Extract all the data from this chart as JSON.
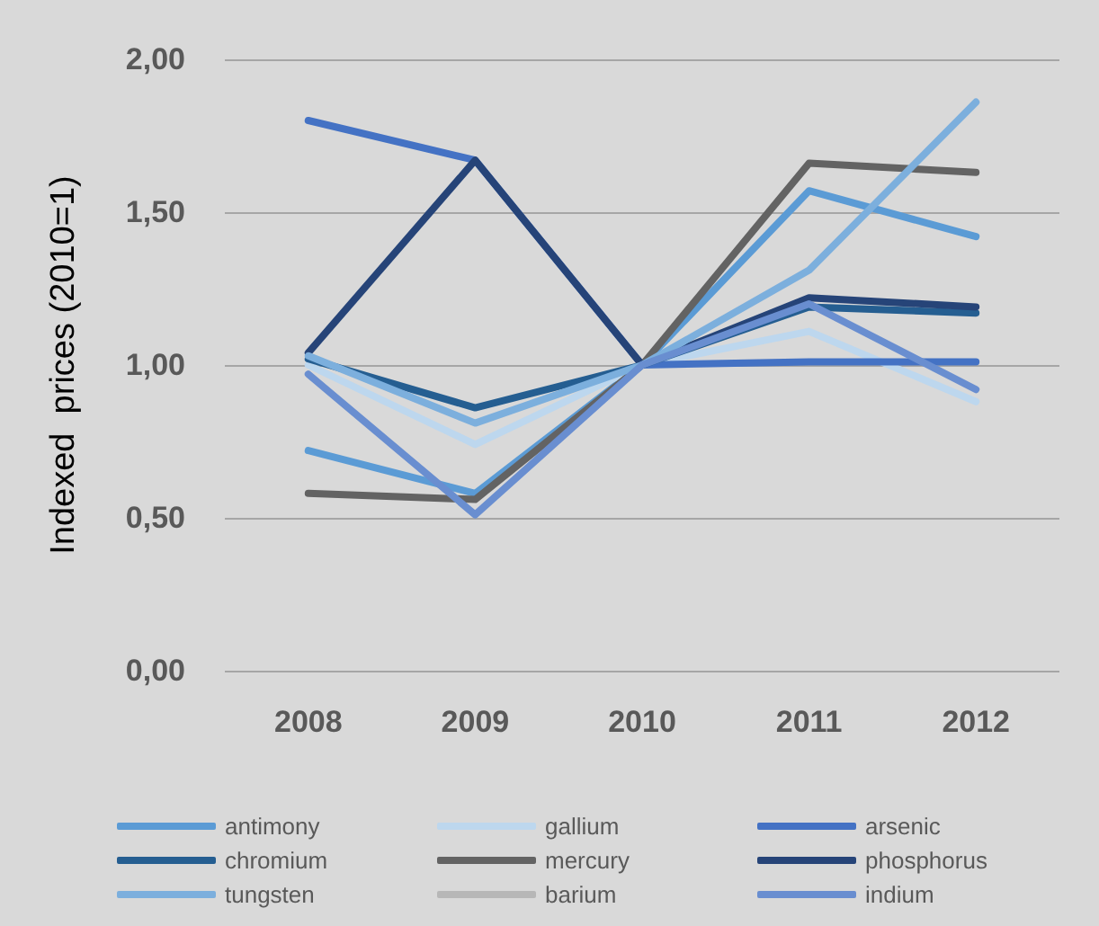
{
  "chart_data": {
    "type": "line",
    "ylabel": "Indexed  prices (2010=1)",
    "categories": [
      "2008",
      "2009",
      "2010",
      "2011",
      "2012"
    ],
    "ylim": [
      0,
      2
    ],
    "yticks": [
      {
        "value": 0,
        "label": "0,00"
      },
      {
        "value": 0.5,
        "label": "0,50"
      },
      {
        "value": 1,
        "label": "1,00"
      },
      {
        "value": 1.5,
        "label": "1,50"
      },
      {
        "value": 2,
        "label": "2,00"
      }
    ],
    "grid": "y",
    "legend": "bottom",
    "marker": "none",
    "line_style": "solid",
    "series": [
      {
        "name": "antimony",
        "color": "#5b9bd5",
        "values": [
          0.72,
          0.58,
          1,
          1.57,
          1.42
        ]
      },
      {
        "name": "gallium",
        "color": "#bdd7ee",
        "values": [
          1.0,
          0.74,
          1,
          1.11,
          0.88
        ]
      },
      {
        "name": "arsenic",
        "color": "#4472c4",
        "values": [
          1.8,
          1.67,
          1,
          1.01,
          1.01
        ]
      },
      {
        "name": "chromium",
        "color": "#255e91",
        "values": [
          1.02,
          0.86,
          1,
          1.19,
          1.17
        ]
      },
      {
        "name": "mercury",
        "color": "#636363",
        "values": [
          0.58,
          0.56,
          1,
          1.66,
          1.63
        ]
      },
      {
        "name": "phosphorus",
        "color": "#264478",
        "values": [
          1.04,
          1.67,
          1,
          1.22,
          1.19
        ]
      },
      {
        "name": "tungsten",
        "color": "#7cafdd",
        "values": [
          1.03,
          0.81,
          1,
          1.31,
          1.86
        ]
      },
      {
        "name": "barium",
        "color": "#b7b7b7",
        "values": [
          null,
          null,
          null,
          null,
          null
        ]
      },
      {
        "name": "indium",
        "color": "#698ed0",
        "values": [
          0.97,
          0.51,
          1,
          1.2,
          0.92
        ]
      }
    ]
  }
}
